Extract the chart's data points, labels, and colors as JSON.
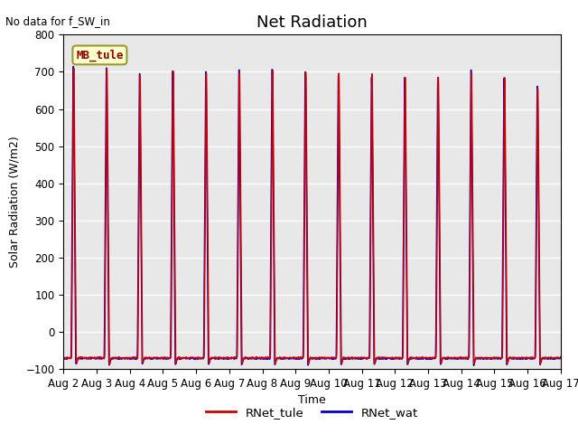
{
  "title": "Net Radiation",
  "xlabel": "Time",
  "ylabel": "Solar Radiation (W/m2)",
  "annotation": "No data for f_SW_in",
  "legend_label": "MB_tule",
  "line1_label": "RNet_tule",
  "line2_label": "RNet_wat",
  "line1_color": "#cc0000",
  "line2_color": "#0000cc",
  "ylim": [
    -100,
    800
  ],
  "bg_color": "#e8e8e8",
  "grid_color": "white",
  "num_days": 15,
  "peak_values_red": [
    715,
    710,
    692,
    704,
    700,
    702,
    706,
    700,
    699,
    697,
    685,
    686,
    700,
    687,
    658
  ],
  "peak_values_blue": [
    718,
    712,
    697,
    706,
    702,
    709,
    709,
    701,
    696,
    688,
    687,
    688,
    705,
    686,
    662
  ],
  "night_min": -70,
  "trough_min": -90,
  "xtick_labels": [
    "Aug 2",
    "Aug 3",
    "Aug 4",
    "Aug 5",
    "Aug 6",
    "Aug 7",
    "Aug 8",
    "Aug 9",
    "Aug 10",
    "Aug 11",
    "Aug 12",
    "Aug 13",
    "Aug 14",
    "Aug 15",
    "Aug 16",
    "Aug 17"
  ],
  "title_fontsize": 13,
  "label_fontsize": 9,
  "tick_fontsize": 8.5
}
